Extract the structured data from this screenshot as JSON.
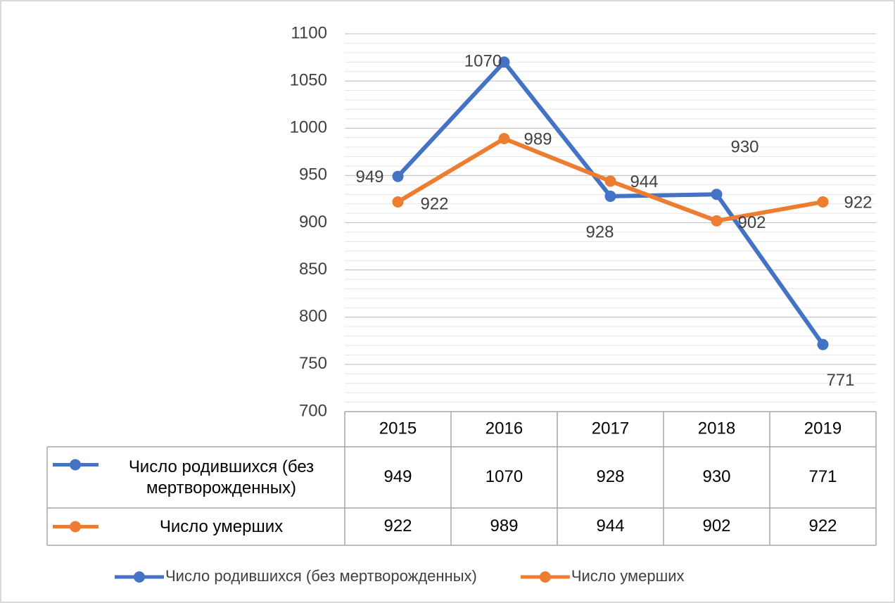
{
  "chart_data": {
    "type": "line",
    "categories": [
      "2015",
      "2016",
      "2017",
      "2018",
      "2019"
    ],
    "series": [
      {
        "name": "Число родившихся (без мертворожденных)",
        "color": "#4472c4",
        "values": [
          949,
          1070,
          928,
          930,
          771
        ]
      },
      {
        "name": "Число умерших",
        "color": "#ed7d31",
        "values": [
          922,
          989,
          944,
          902,
          922
        ]
      }
    ],
    "ylim": [
      700,
      1100
    ],
    "yticks": [
      700,
      750,
      800,
      850,
      900,
      950,
      1000,
      1050,
      1100
    ],
    "grid": true,
    "minor_grid_step": 10,
    "data_table": true,
    "legend": "bottom"
  }
}
